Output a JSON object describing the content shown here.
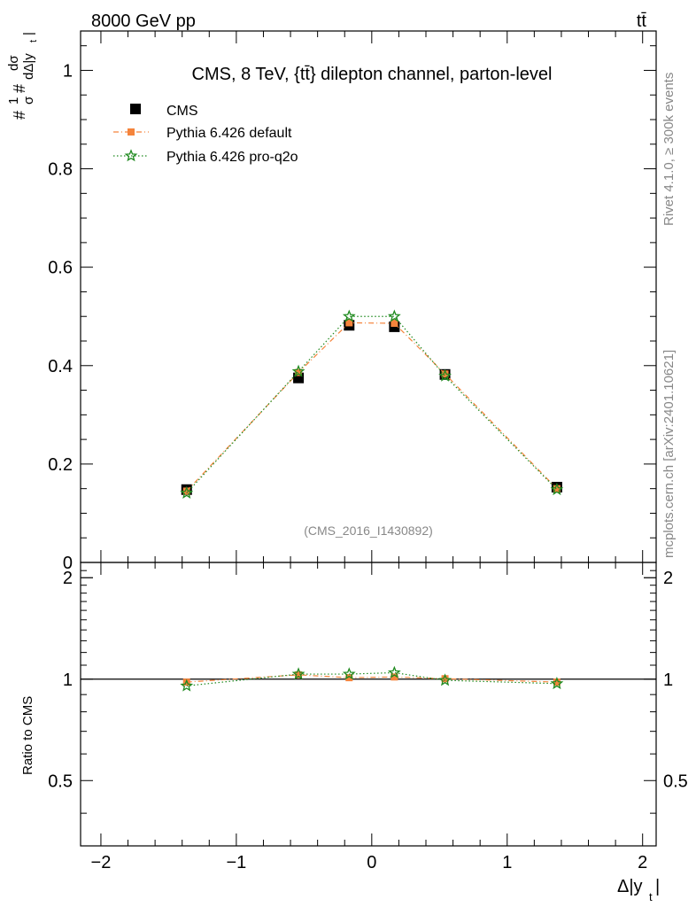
{
  "header": {
    "left": "8000 GeV pp",
    "right": "tt̄"
  },
  "side": {
    "rivet": "Rivet 4.1.0, ≥ 300k events",
    "mcplots": "mcplots.cern.ch [arXiv:2401.10621]"
  },
  "chart_data": [
    {
      "type": "scatter",
      "title": "CMS, 8 TeV, {tt̄} dilepton channel, parton-level",
      "ylabel_fraction": {
        "num": "1",
        "den": "σ",
        "dnum": "dσ",
        "dden": "dΔ|y",
        "sub": "t",
        "close": "|",
        "hash": "#"
      },
      "watermark": "(CMS_2016_I1430892)",
      "xlim": [
        -2.15,
        2.1
      ],
      "ylim": [
        0,
        1.08
      ],
      "yticks": [
        0,
        0.2,
        0.4,
        0.6,
        0.8,
        1
      ],
      "ytick_labels": [
        "0",
        "0.2",
        "0.4",
        "0.6",
        "0.8",
        "1"
      ],
      "legend": {
        "position": "top-left",
        "entries": [
          "CMS",
          "Pythia 6.426 default",
          "Pythia 6.426 pro-q2o"
        ]
      },
      "x": [
        -1.367,
        -0.541,
        -0.167,
        0.167,
        0.541,
        1.367
      ],
      "series": [
        {
          "name": "CMS",
          "color": "#000000",
          "marker": "square",
          "values": [
            0.148,
            0.375,
            0.482,
            0.479,
            0.382,
            0.153
          ]
        },
        {
          "name": "Pythia 6.426 default",
          "color": "#f5843c",
          "marker": "square-small",
          "line": "dashdot",
          "values": [
            0.145,
            0.386,
            0.487,
            0.486,
            0.383,
            0.15
          ]
        },
        {
          "name": "Pythia 6.426 pro-q2o",
          "color": "#1f8a1f",
          "marker": "star",
          "line": "dotted",
          "values": [
            0.141,
            0.388,
            0.5,
            0.5,
            0.379,
            0.148
          ]
        }
      ]
    },
    {
      "type": "line",
      "ylabel": "Ratio to CMS",
      "xlabel": "Δ|y",
      "xlabel_sub": "t",
      "xlabel_close": "|",
      "xlim": [
        -2.15,
        2.1
      ],
      "ylim": [
        0.32,
        2.22
      ],
      "xticks": [
        -2,
        -1,
        0,
        1,
        2
      ],
      "xtick_labels": [
        "−2",
        "−1",
        "0",
        "1",
        "2"
      ],
      "yticks": [
        0.5,
        1,
        2
      ],
      "ytick_labels": [
        "0.5",
        "1",
        "2"
      ],
      "reference": 1,
      "x": [
        -1.367,
        -0.541,
        -0.167,
        0.167,
        0.541,
        1.367
      ],
      "series": [
        {
          "name": "Pythia 6.426 default",
          "color": "#f5843c",
          "marker": "square-small",
          "line": "dashdot",
          "values": [
            0.98,
            1.03,
            1.01,
            1.015,
            1.003,
            0.98
          ]
        },
        {
          "name": "Pythia 6.426 pro-q2o",
          "color": "#1f8a1f",
          "marker": "star",
          "line": "dotted",
          "values": [
            0.955,
            1.035,
            1.035,
            1.045,
            0.992,
            0.97
          ]
        }
      ]
    }
  ]
}
